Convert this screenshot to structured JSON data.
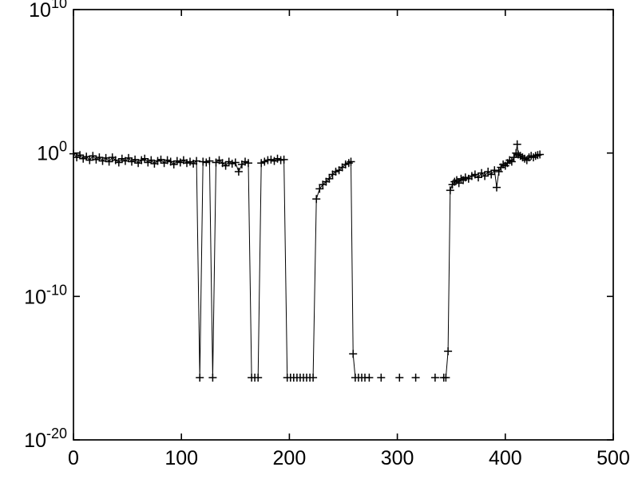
{
  "figure": {
    "background": "#ffffff",
    "axis_color": "#000000",
    "line_color": "#000000",
    "marker_color": "#000000"
  },
  "chart_data": {
    "type": "line",
    "title": "",
    "xlabel": "",
    "ylabel": "",
    "marker": "+",
    "grid": false,
    "legend": "none",
    "y_scale": "log10",
    "xlim": [
      0,
      500
    ],
    "ylim_log10": [
      -20,
      10
    ],
    "x_ticks": [
      0,
      100,
      200,
      300,
      400,
      500
    ],
    "y_tick_exponents": [
      10,
      0,
      -10,
      -20
    ],
    "y_tick_labels": [
      "10^10",
      "10^0",
      "10^-10",
      "10^-20"
    ],
    "floor_value": 2.2e-16,
    "series": [
      {
        "name": "segment-1",
        "points": [
          [
            0,
            0.89
          ],
          [
            3,
            0.5
          ],
          [
            6,
            0.71
          ],
          [
            9,
            0.4
          ],
          [
            12,
            0.56
          ],
          [
            15,
            0.32
          ],
          [
            18,
            0.63
          ],
          [
            21,
            0.35
          ],
          [
            24,
            0.5
          ],
          [
            27,
            0.28
          ],
          [
            30,
            0.45
          ],
          [
            33,
            0.25
          ],
          [
            36,
            0.5
          ],
          [
            39,
            0.32
          ],
          [
            42,
            0.22
          ],
          [
            45,
            0.4
          ],
          [
            48,
            0.28
          ],
          [
            51,
            0.45
          ],
          [
            54,
            0.25
          ],
          [
            57,
            0.35
          ],
          [
            60,
            0.2
          ],
          [
            63,
            0.32
          ],
          [
            66,
            0.4
          ],
          [
            69,
            0.22
          ],
          [
            72,
            0.32
          ],
          [
            75,
            0.18
          ],
          [
            78,
            0.28
          ],
          [
            81,
            0.35
          ],
          [
            84,
            0.2
          ],
          [
            87,
            0.32
          ],
          [
            90,
            0.25
          ],
          [
            93,
            0.16
          ],
          [
            96,
            0.28
          ],
          [
            99,
            0.22
          ],
          [
            102,
            0.32
          ],
          [
            105,
            0.2
          ],
          [
            108,
            0.25
          ],
          [
            111,
            0.18
          ],
          [
            114,
            0.28
          ],
          [
            117,
            2.2e-16
          ],
          [
            120,
            0.25
          ],
          [
            123,
            0.22
          ],
          [
            126,
            0.28
          ],
          [
            129,
            2.2e-16
          ],
          [
            132,
            0.22
          ],
          [
            135,
            0.32
          ],
          [
            138,
            0.2
          ],
          [
            141,
            0.13
          ],
          [
            144,
            0.25
          ],
          [
            147,
            0.18
          ],
          [
            150,
            0.22
          ],
          [
            153,
            0.05
          ],
          [
            156,
            0.16
          ],
          [
            159,
            0.25
          ],
          [
            162,
            0.2
          ],
          [
            165,
            2.2e-16
          ],
          [
            168,
            2.2e-16
          ],
          [
            171,
            2.2e-16
          ],
          [
            174,
            0.2
          ],
          [
            177,
            0.25
          ],
          [
            180,
            0.32
          ],
          [
            183,
            0.35
          ],
          [
            186,
            0.28
          ],
          [
            189,
            0.4
          ],
          [
            192,
            0.32
          ],
          [
            195,
            0.35
          ],
          [
            198,
            2.2e-16
          ],
          [
            201,
            2.2e-16
          ],
          [
            204,
            2.2e-16
          ],
          [
            207,
            2.2e-16
          ],
          [
            210,
            2.2e-16
          ],
          [
            213,
            2.2e-16
          ],
          [
            216,
            2.2e-16
          ],
          [
            219,
            2.2e-16
          ],
          [
            222,
            2.2e-16
          ],
          [
            225,
            0.00063
          ],
          [
            228,
            0.0032
          ],
          [
            231,
            0.0063
          ],
          [
            234,
            0.01
          ],
          [
            237,
            0.016
          ],
          [
            240,
            0.032
          ],
          [
            243,
            0.05
          ],
          [
            246,
            0.063
          ],
          [
            249,
            0.1
          ],
          [
            252,
            0.16
          ],
          [
            255,
            0.2
          ],
          [
            257,
            0.25
          ],
          [
            259,
            1e-14
          ],
          [
            261,
            2.2e-16
          ],
          [
            264,
            2.2e-16
          ],
          [
            267,
            2.2e-16
          ],
          [
            270,
            2.2e-16
          ]
        ]
      },
      {
        "name": "segment-2",
        "points": [
          [
            345,
            2.2e-16
          ],
          [
            347,
            1.5e-14
          ],
          [
            349,
            0.0025
          ],
          [
            351,
            0.0063
          ],
          [
            353,
            0.01
          ],
          [
            355,
            0.013
          ],
          [
            357,
            0.0079
          ],
          [
            359,
            0.016
          ],
          [
            361,
            0.013
          ],
          [
            363,
            0.02
          ],
          [
            366,
            0.016
          ],
          [
            369,
            0.025
          ],
          [
            372,
            0.032
          ],
          [
            375,
            0.02
          ],
          [
            378,
            0.04
          ],
          [
            381,
            0.025
          ],
          [
            384,
            0.05
          ],
          [
            387,
            0.032
          ],
          [
            390,
            0.063
          ],
          [
            392,
            0.004
          ],
          [
            394,
            0.05
          ],
          [
            396,
            0.1
          ],
          [
            398,
            0.16
          ],
          [
            400,
            0.13
          ],
          [
            402,
            0.2
          ],
          [
            404,
            0.32
          ],
          [
            406,
            0.25
          ],
          [
            408,
            0.5
          ],
          [
            410,
            1.0
          ],
          [
            411,
            4.0
          ],
          [
            412,
            0.79
          ],
          [
            414,
            0.63
          ],
          [
            416,
            0.5
          ],
          [
            418,
            0.4
          ],
          [
            420,
            0.32
          ],
          [
            422,
            0.5
          ],
          [
            424,
            0.63
          ],
          [
            426,
            0.5
          ],
          [
            428,
            0.63
          ],
          [
            430,
            0.71
          ],
          [
            432,
            0.79
          ]
        ]
      }
    ],
    "isolated_points": {
      "y": 2.2e-16,
      "x": [
        274,
        285,
        302,
        317,
        335,
        343
      ]
    }
  }
}
